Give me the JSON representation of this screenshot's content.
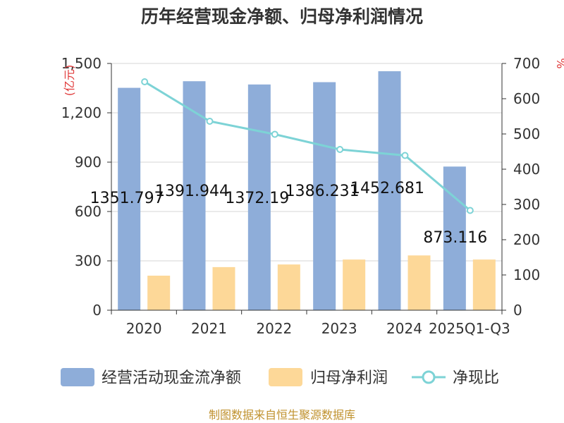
{
  "chart_data": {
    "type": "bar",
    "title": "历年经营现金净额、归母净利润情况",
    "categories": [
      "2020",
      "2021",
      "2022",
      "2023",
      "2024",
      "2025Q1-Q3"
    ],
    "series": [
      {
        "name": "经营活动现金流净额",
        "type": "bar",
        "axis": "left",
        "color": "#8eadd9",
        "values": [
          1351.797,
          1391.944,
          1372.19,
          1386.231,
          1452.681,
          873.116
        ]
      },
      {
        "name": "归母净利润",
        "type": "bar",
        "axis": "left",
        "color": "#fdd898",
        "values": [
          210,
          262,
          278,
          308,
          333,
          308
        ]
      },
      {
        "name": "净现比",
        "type": "line",
        "axis": "right",
        "color": "#7dd3d6",
        "values": [
          648,
          536,
          499,
          456,
          439,
          283
        ]
      }
    ],
    "data_labels": [
      "1351.797",
      "1391.944",
      "1372.19",
      "1386.231",
      "1452.681",
      "873.116"
    ],
    "left_axis": {
      "unit": "亿元",
      "min": 0,
      "max": 1500,
      "ticks": [
        0,
        300,
        600,
        900,
        1200,
        1500
      ],
      "tick_labels": [
        "0",
        "300",
        "600",
        "900",
        "1,200",
        "1,500"
      ]
    },
    "right_axis": {
      "unit": "%",
      "min": 0,
      "max": 700,
      "ticks": [
        0,
        100,
        200,
        300,
        400,
        500,
        600,
        700
      ],
      "tick_labels": [
        "0",
        "100",
        "200",
        "300",
        "400",
        "500",
        "600",
        "700"
      ]
    },
    "legend_position": "bottom",
    "grid": true
  },
  "source": "制图数据来自恒生聚源数据库"
}
